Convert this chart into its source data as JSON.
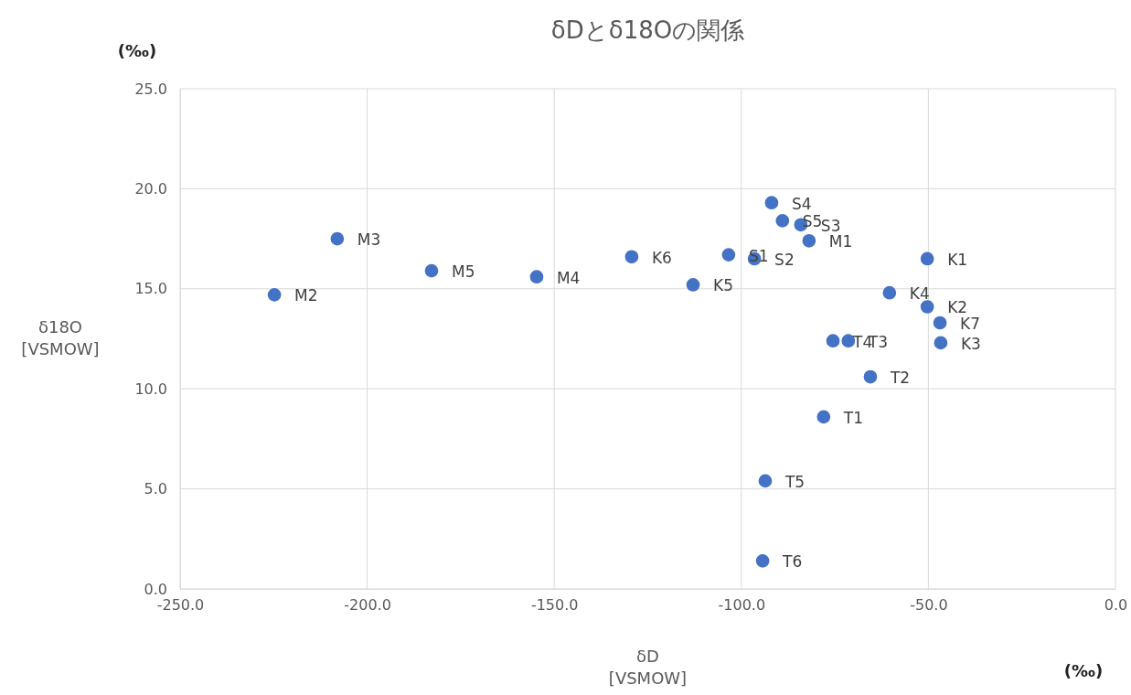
{
  "chart_data": {
    "type": "scatter",
    "title": "δDとδ18Oの関係",
    "xlabel": "δD\n[VSMOW]",
    "ylabel": "δ18O\n[VSMOW]",
    "x": [
      -224.8,
      -208.0,
      -182.8,
      -154.7,
      -129.3,
      -112.9,
      -103.4,
      -96.5,
      -91.9,
      -89.0,
      -84.1,
      -81.9,
      -75.5,
      -71.4,
      -65.5,
      -78.0,
      -93.6,
      -94.3,
      -60.4,
      -50.3,
      -50.3,
      -46.9,
      -46.7
    ],
    "series": [
      {
        "color": "#4472c4",
        "values": [
          14.7,
          17.5,
          15.9,
          15.6,
          16.6,
          15.2,
          16.7,
          16.5,
          19.3,
          18.4,
          18.2,
          17.4,
          12.4,
          12.4,
          10.6,
          8.6,
          5.4,
          1.4,
          14.8,
          16.5,
          14.1,
          13.3,
          12.3
        ]
      }
    ],
    "xlim": [
      -250,
      0
    ],
    "ylim": [
      0,
      25
    ],
    "xticks": [
      {
        "value": -250,
        "label": "-250.0"
      },
      {
        "value": -200,
        "label": "-200.0"
      },
      {
        "value": -150,
        "label": "-150.0"
      },
      {
        "value": -100,
        "label": "-100.0"
      },
      {
        "value": -50,
        "label": "-50.0"
      },
      {
        "value": 0,
        "label": "0.0"
      }
    ],
    "yticks": [
      {
        "value": 0,
        "label": "0.0"
      },
      {
        "value": 5,
        "label": "5.0"
      },
      {
        "value": 10,
        "label": "10.0"
      },
      {
        "value": 15,
        "label": "15.0"
      },
      {
        "value": 20,
        "label": "20.0"
      },
      {
        "value": 25,
        "label": "25.0"
      }
    ],
    "grid": true,
    "marker": "circle",
    "annotations": [
      "(‰)",
      "(‰)",
      {
        "text": "M2",
        "x": -224.8,
        "y": 14.7
      },
      {
        "text": "M3",
        "x": -208.0,
        "y": 17.5
      },
      {
        "text": "M5",
        "x": -182.8,
        "y": 15.9
      },
      {
        "text": "M4",
        "x": -154.7,
        "y": 15.6
      },
      {
        "text": "K6",
        "x": -129.3,
        "y": 16.6
      },
      {
        "text": "K5",
        "x": -112.9,
        "y": 15.2
      },
      {
        "text": "S1",
        "x": -103.4,
        "y": 16.7
      },
      {
        "text": "S2",
        "x": -96.5,
        "y": 16.5
      },
      {
        "text": "S4",
        "x": -91.9,
        "y": 19.3
      },
      {
        "text": "S5",
        "x": -89.0,
        "y": 18.4
      },
      {
        "text": "S3",
        "x": -84.1,
        "y": 18.2
      },
      {
        "text": "M1",
        "x": -81.9,
        "y": 17.4
      },
      {
        "text": "T4",
        "x": -75.5,
        "y": 12.4
      },
      {
        "text": "T3",
        "x": -71.4,
        "y": 12.4
      },
      {
        "text": "T2",
        "x": -65.5,
        "y": 10.6
      },
      {
        "text": "T1",
        "x": -78.0,
        "y": 8.6
      },
      {
        "text": "T5",
        "x": -93.6,
        "y": 5.4
      },
      {
        "text": "T6",
        "x": -94.3,
        "y": 1.4
      },
      {
        "text": "K4",
        "x": -60.4,
        "y": 14.8
      },
      {
        "text": "K1",
        "x": -50.3,
        "y": 16.5
      },
      {
        "text": "K2",
        "x": -50.3,
        "y": 14.1
      },
      {
        "text": "K7",
        "x": -46.9,
        "y": 13.3
      },
      {
        "text": "K3",
        "x": -46.7,
        "y": 12.3
      }
    ]
  }
}
